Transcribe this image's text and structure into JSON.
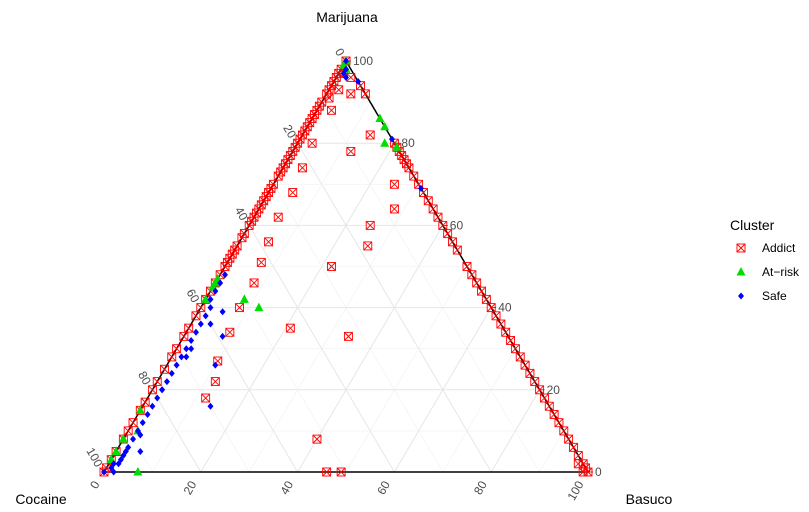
{
  "chart_data": {
    "type": "scatter",
    "subtype": "ternary",
    "vertices": {
      "top": "Marijuana",
      "left": "Cocaine",
      "right": "Basuco"
    },
    "ticks": [
      "0",
      "20",
      "40",
      "60",
      "80",
      "100"
    ],
    "grid": true,
    "legend": {
      "title": "Cluster",
      "position": "right",
      "entries": [
        "Addict",
        "At−risk",
        "Safe"
      ]
    },
    "colors": {
      "Addict": "#ff0000",
      "At-risk": "#00dd00",
      "Safe": "#0000ff"
    },
    "series": [
      {
        "name": "Addict",
        "marker": "square-x",
        "points": [
          [
            100,
            0,
            0
          ],
          [
            98,
            2,
            0
          ],
          [
            97,
            3,
            0
          ],
          [
            96,
            4,
            0
          ],
          [
            95,
            5,
            0
          ],
          [
            94,
            6,
            0
          ],
          [
            93,
            7,
            0
          ],
          [
            92,
            8,
            0
          ],
          [
            91,
            8,
            1
          ],
          [
            90,
            10,
            0
          ],
          [
            89,
            11,
            0
          ],
          [
            88,
            12,
            0
          ],
          [
            87,
            13,
            0
          ],
          [
            86,
            14,
            0
          ],
          [
            85,
            15,
            0
          ],
          [
            84,
            16,
            0
          ],
          [
            83,
            17,
            0
          ],
          [
            82,
            18,
            0
          ],
          [
            81,
            19,
            0
          ],
          [
            80,
            20,
            0
          ],
          [
            79,
            21,
            0
          ],
          [
            78,
            22,
            0
          ],
          [
            77,
            23,
            0
          ],
          [
            76,
            24,
            0
          ],
          [
            75,
            25,
            0
          ],
          [
            74,
            26,
            0
          ],
          [
            73,
            27,
            0
          ],
          [
            72,
            28,
            0
          ],
          [
            70,
            30,
            0
          ],
          [
            69,
            31,
            0
          ],
          [
            68,
            32,
            0
          ],
          [
            67,
            33,
            0
          ],
          [
            66,
            34,
            0
          ],
          [
            65,
            35,
            0
          ],
          [
            64,
            36,
            0
          ],
          [
            63,
            37,
            0
          ],
          [
            62,
            38,
            0
          ],
          [
            61,
            39,
            0
          ],
          [
            60,
            40,
            0
          ],
          [
            58,
            42,
            0
          ],
          [
            57,
            43,
            0
          ],
          [
            55,
            45,
            0
          ],
          [
            54,
            46,
            0
          ],
          [
            53,
            47,
            0
          ],
          [
            52,
            48,
            0
          ],
          [
            51,
            49,
            0
          ],
          [
            50,
            50,
            0
          ],
          [
            48,
            52,
            0
          ],
          [
            46,
            54,
            0
          ],
          [
            44,
            56,
            0
          ],
          [
            42,
            58,
            0
          ],
          [
            40,
            60,
            0
          ],
          [
            38,
            62,
            0
          ],
          [
            35,
            65,
            0
          ],
          [
            33,
            67,
            0
          ],
          [
            30,
            70,
            0
          ],
          [
            28,
            72,
            0
          ],
          [
            25,
            75,
            0
          ],
          [
            22,
            78,
            0
          ],
          [
            20,
            80,
            0
          ],
          [
            17,
            83,
            0
          ],
          [
            15,
            85,
            0
          ],
          [
            12,
            88,
            0
          ],
          [
            10,
            90,
            0
          ],
          [
            8,
            92,
            0
          ],
          [
            5,
            95,
            0
          ],
          [
            3,
            97,
            0
          ],
          [
            1,
            99,
            0
          ],
          [
            0,
            100,
            0
          ],
          [
            97,
            2,
            1
          ],
          [
            93,
            5,
            2
          ],
          [
            88,
            9,
            3
          ],
          [
            80,
            17,
            3
          ],
          [
            74,
            22,
            4
          ],
          [
            68,
            27,
            5
          ],
          [
            62,
            33,
            5
          ],
          [
            56,
            38,
            6
          ],
          [
            51,
            42,
            7
          ],
          [
            46,
            46,
            8
          ],
          [
            40,
            52,
            8
          ],
          [
            34,
            57,
            9
          ],
          [
            27,
            63,
            10
          ],
          [
            22,
            66,
            12
          ],
          [
            18,
            70,
            12
          ],
          [
            94,
            0,
            6
          ],
          [
            92,
            0,
            8
          ],
          [
            80,
            0,
            20
          ],
          [
            79,
            0,
            21
          ],
          [
            78,
            0,
            22
          ],
          [
            77,
            0,
            23
          ],
          [
            76,
            0,
            24
          ],
          [
            75,
            0,
            25
          ],
          [
            74,
            0,
            26
          ],
          [
            72,
            0,
            28
          ],
          [
            70,
            0,
            30
          ],
          [
            68,
            0,
            32
          ],
          [
            66,
            0,
            34
          ],
          [
            64,
            0,
            36
          ],
          [
            62,
            0,
            38
          ],
          [
            60,
            0,
            40
          ],
          [
            58,
            0,
            42
          ],
          [
            56,
            0,
            44
          ],
          [
            54,
            0,
            46
          ],
          [
            50,
            0,
            50
          ],
          [
            48,
            0,
            52
          ],
          [
            46,
            0,
            54
          ],
          [
            44,
            0,
            56
          ],
          [
            42,
            0,
            58
          ],
          [
            40,
            0,
            60
          ],
          [
            38,
            0,
            62
          ],
          [
            36,
            0,
            64
          ],
          [
            34,
            0,
            66
          ],
          [
            32,
            0,
            68
          ],
          [
            30,
            0,
            70
          ],
          [
            28,
            0,
            72
          ],
          [
            26,
            0,
            74
          ],
          [
            24,
            0,
            76
          ],
          [
            22,
            0,
            78
          ],
          [
            20,
            0,
            80
          ],
          [
            18,
            0,
            82
          ],
          [
            16,
            0,
            84
          ],
          [
            14,
            0,
            86
          ],
          [
            12,
            0,
            88
          ],
          [
            10,
            0,
            90
          ],
          [
            8,
            0,
            92
          ],
          [
            6,
            0,
            94
          ],
          [
            4,
            0,
            96
          ],
          [
            2,
            0,
            98
          ],
          [
            0,
            0,
            100
          ],
          [
            96,
            1,
            3
          ],
          [
            82,
            4,
            14
          ],
          [
            92,
            3,
            5
          ],
          [
            64,
            8,
            28
          ],
          [
            55,
            18,
            27
          ],
          [
            50,
            28,
            22
          ],
          [
            35,
            44,
            21
          ],
          [
            33,
            33,
            34
          ],
          [
            78,
            10,
            12
          ],
          [
            60,
            15,
            25
          ],
          [
            70,
            5,
            25
          ],
          [
            8,
            52,
            40
          ],
          [
            0,
            54,
            46
          ],
          [
            0,
            51,
            49
          ],
          [
            1,
            0,
            99
          ],
          [
            0,
            1,
            99
          ],
          [
            2,
            1,
            97
          ]
        ]
      },
      {
        "name": "At−risk",
        "marker": "triangle",
        "points": [
          [
            100,
            0,
            0
          ],
          [
            99,
            1,
            0
          ],
          [
            98,
            1,
            1
          ],
          [
            86,
            0,
            14
          ],
          [
            84,
            0,
            16
          ],
          [
            80,
            2,
            18
          ],
          [
            79,
            0,
            21
          ],
          [
            47,
            53,
            0
          ],
          [
            46,
            54,
            0
          ],
          [
            45,
            55,
            0
          ],
          [
            42,
            58,
            0
          ],
          [
            42,
            50,
            8
          ],
          [
            40,
            48,
            12
          ],
          [
            15,
            85,
            0
          ],
          [
            10,
            88,
            2
          ],
          [
            5,
            95,
            0
          ],
          [
            0,
            93,
            7
          ],
          [
            3,
            97,
            0
          ],
          [
            8,
            92,
            0
          ]
        ]
      },
      {
        "name": "Safe",
        "marker": "diamond",
        "points": [
          [
            100,
            0,
            0
          ],
          [
            98,
            1,
            1
          ],
          [
            97,
            2,
            1
          ],
          [
            96,
            2,
            2
          ],
          [
            81,
            0,
            19
          ],
          [
            69,
            0,
            31
          ],
          [
            95,
            0,
            5
          ],
          [
            48,
            51,
            1
          ],
          [
            46,
            53,
            1
          ],
          [
            44,
            55,
            1
          ],
          [
            42,
            57,
            1
          ],
          [
            40,
            58,
            2
          ],
          [
            38,
            60,
            2
          ],
          [
            36,
            62,
            2
          ],
          [
            34,
            64,
            2
          ],
          [
            32,
            66,
            2
          ],
          [
            30,
            68,
            2
          ],
          [
            28,
            70,
            2
          ],
          [
            26,
            72,
            2
          ],
          [
            24,
            74,
            2
          ],
          [
            22,
            76,
            2
          ],
          [
            20,
            78,
            2
          ],
          [
            18,
            80,
            2
          ],
          [
            16,
            82,
            2
          ],
          [
            14,
            84,
            2
          ],
          [
            12,
            86,
            2
          ],
          [
            10,
            88,
            2
          ],
          [
            8,
            90,
            2
          ],
          [
            6,
            92,
            2
          ],
          [
            4,
            94,
            2
          ],
          [
            2,
            96,
            2
          ],
          [
            0,
            100,
            0
          ],
          [
            1,
            98,
            1
          ],
          [
            2,
            97,
            1
          ],
          [
            3,
            95,
            2
          ],
          [
            5,
            93,
            2
          ],
          [
            0,
            98,
            2
          ],
          [
            20,
            78,
            2
          ],
          [
            28,
            69,
            3
          ],
          [
            26,
            64,
            10
          ],
          [
            36,
            60,
            4
          ],
          [
            39,
            56,
            5
          ],
          [
            30,
            67,
            3
          ],
          [
            16,
            70,
            14
          ],
          [
            9,
            88,
            3
          ],
          [
            5,
            90,
            5
          ],
          [
            33,
            59,
            8
          ]
        ]
      }
    ]
  }
}
